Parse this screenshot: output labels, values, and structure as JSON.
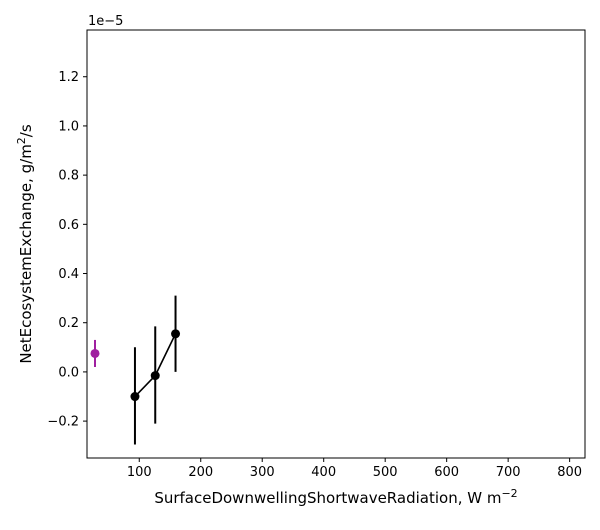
{
  "chart_data": {
    "type": "line",
    "y_offset_label": "1e−5",
    "xlabel": "SurfaceDownwellingShortwaveRadiation,  W m",
    "xlabel_sup": "−2",
    "ylabel_prefix": "NetEcosystemExchange,  g/m",
    "ylabel_sup": "2",
    "ylabel_suffix": "/s",
    "xlim": [
      15,
      825
    ],
    "ylim": [
      -0.35,
      1.39
    ],
    "x_ticks": [
      100,
      200,
      300,
      400,
      500,
      600,
      700,
      800
    ],
    "y_ticks": [
      -0.2,
      0.0,
      0.2,
      0.4,
      0.6,
      0.8,
      1.0,
      1.2
    ],
    "x_tick_labels": [
      "100",
      "200",
      "300",
      "400",
      "500",
      "600",
      "700",
      "800"
    ],
    "y_tick_labels": [
      "−0.2",
      "0.0",
      "0.2",
      "0.4",
      "0.6",
      "0.8",
      "1.0",
      "1.2"
    ],
    "grid": false,
    "series": [
      {
        "color": "#000000",
        "connected": true,
        "x": [
          93,
          126,
          159
        ],
        "y": [
          -0.1,
          -0.015,
          0.155
        ],
        "err_low": [
          -0.295,
          -0.21,
          0.0
        ],
        "err_high": [
          0.1,
          0.185,
          0.31
        ]
      },
      {
        "color": "#a020a0",
        "connected": false,
        "x": [
          28
        ],
        "y": [
          0.075
        ],
        "err_low": [
          0.02
        ],
        "err_high": [
          0.13
        ]
      }
    ]
  }
}
